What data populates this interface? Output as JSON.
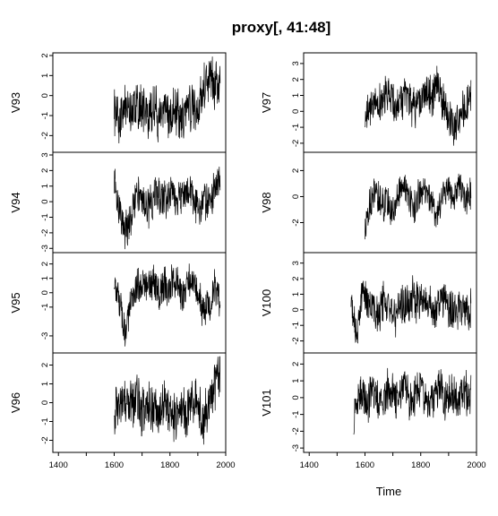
{
  "chart_data": {
    "type": "line",
    "title": "proxy[, 41:48]",
    "xlabel": "Time",
    "xlim": [
      1380,
      2000
    ],
    "xticks": [
      "1400",
      "1600",
      "1800",
      "2000"
    ],
    "grid": false,
    "columns": [
      {
        "panels": [
          {
            "name": "V93",
            "start": 1600,
            "end": 1980,
            "ylim": [
              -2.7,
              2.0
            ],
            "yticks": [
              "-2",
              "-1",
              "0",
              "1",
              "2"
            ],
            "x": [
              1600,
              1620,
              1640,
              1660,
              1680,
              1700,
              1720,
              1740,
              1760,
              1780,
              1800,
              1820,
              1840,
              1860,
              1880,
              1900,
              1920,
              1940,
              1960,
              1980
            ],
            "y": [
              -0.8,
              -1.1,
              -0.5,
              -0.9,
              -0.4,
              -0.7,
              -1.0,
              -0.6,
              -1.2,
              -0.8,
              -1.0,
              -0.7,
              -1.3,
              -0.9,
              -0.5,
              -0.8,
              0.2,
              1.0,
              0.7,
              0.3
            ]
          },
          {
            "name": "V94",
            "start": 1600,
            "end": 1980,
            "ylim": [
              -3.1,
              3.0
            ],
            "yticks": [
              "-3",
              "-2",
              "-1",
              "0",
              "1",
              "2",
              "3"
            ],
            "x": [
              1600,
              1620,
              1640,
              1660,
              1680,
              1700,
              1720,
              1740,
              1760,
              1780,
              1800,
              1820,
              1840,
              1860,
              1880,
              1900,
              1920,
              1940,
              1960,
              1980
            ],
            "y": [
              1.2,
              -0.6,
              -2.0,
              -0.8,
              0.6,
              0.3,
              -0.4,
              0.2,
              0.5,
              -0.1,
              0.7,
              0.3,
              0.1,
              1.0,
              0.4,
              -0.6,
              0.3,
              -0.2,
              0.8,
              1.4
            ]
          },
          {
            "name": "V95",
            "start": 1600,
            "end": 1980,
            "ylim": [
              -4.0,
              2.6
            ],
            "yticks": [
              "-3",
              "-1",
              "0",
              "1",
              "2"
            ],
            "x": [
              1600,
              1620,
              1640,
              1660,
              1680,
              1700,
              1720,
              1740,
              1760,
              1780,
              1800,
              1820,
              1840,
              1860,
              1880,
              1900,
              1920,
              1940,
              1960,
              1980
            ],
            "y": [
              0.5,
              -0.8,
              -2.6,
              -1.0,
              0.4,
              1.0,
              0.2,
              0.7,
              -0.3,
              0.6,
              0.4,
              0.9,
              -0.2,
              0.5,
              1.0,
              0.2,
              -1.5,
              -0.7,
              0.3,
              -0.6
            ]
          },
          {
            "name": "V96",
            "start": 1600,
            "end": 1980,
            "ylim": [
              -2.5,
              2.5
            ],
            "yticks": [
              "-2",
              "-1",
              "0",
              "1",
              "2"
            ],
            "x": [
              1600,
              1620,
              1640,
              1660,
              1680,
              1700,
              1720,
              1740,
              1760,
              1780,
              1800,
              1820,
              1840,
              1860,
              1880,
              1900,
              1920,
              1940,
              1960,
              1980
            ],
            "y": [
              -0.3,
              0.3,
              0.0,
              -0.2,
              0.4,
              -0.5,
              0.1,
              -0.3,
              -0.6,
              0.2,
              -0.4,
              -0.9,
              -0.3,
              -0.7,
              0.3,
              -0.2,
              -1.0,
              0.2,
              0.8,
              1.8
            ]
          }
        ]
      },
      {
        "panels": [
          {
            "name": "V97",
            "start": 1600,
            "end": 1980,
            "ylim": [
              -2.4,
              3.5
            ],
            "yticks": [
              "-2",
              "-1",
              "0",
              "1",
              "2",
              "3"
            ],
            "x": [
              1600,
              1620,
              1640,
              1660,
              1680,
              1700,
              1720,
              1740,
              1760,
              1780,
              1800,
              1820,
              1840,
              1860,
              1880,
              1900,
              1920,
              1940,
              1960,
              1980
            ],
            "y": [
              -0.5,
              0.6,
              1.0,
              0.4,
              1.4,
              0.8,
              0.3,
              1.0,
              0.6,
              0.2,
              0.9,
              1.4,
              0.8,
              1.7,
              0.6,
              -0.4,
              -1.0,
              -0.3,
              0.2,
              0.6
            ]
          },
          {
            "name": "V98",
            "start": 1600,
            "end": 1980,
            "ylim": [
              -4.1,
              3.2
            ],
            "yticks": [
              "-2",
              "0",
              "2"
            ],
            "x": [
              1600,
              1620,
              1640,
              1660,
              1680,
              1700,
              1720,
              1740,
              1760,
              1780,
              1800,
              1820,
              1840,
              1860,
              1880,
              1900,
              1920,
              1940,
              1960,
              1980
            ],
            "y": [
              -2.5,
              -0.4,
              0.5,
              -0.8,
              -0.2,
              -1.5,
              0.3,
              1.0,
              -0.3,
              -0.8,
              0.4,
              0.6,
              -0.5,
              -1.6,
              0.2,
              0.6,
              0.0,
              0.9,
              -0.2,
              0.3
            ]
          },
          {
            "name": "V100",
            "start": 1550,
            "end": 1980,
            "ylim": [
              -2.6,
              3.5
            ],
            "yticks": [
              "-2",
              "-1",
              "0",
              "1",
              "2",
              "3"
            ],
            "x": [
              1550,
              1570,
              1590,
              1610,
              1630,
              1650,
              1670,
              1690,
              1710,
              1730,
              1750,
              1770,
              1790,
              1810,
              1830,
              1850,
              1870,
              1890,
              1910,
              1930,
              1950,
              1970,
              1980
            ],
            "y": [
              0.3,
              -1.5,
              1.0,
              0.3,
              0.5,
              -0.2,
              0.8,
              0.0,
              -0.4,
              0.3,
              0.2,
              0.8,
              0.4,
              0.9,
              0.6,
              0.1,
              0.7,
              0.3,
              -0.1,
              0.0,
              0.2,
              -0.2,
              0.1
            ]
          },
          {
            "name": "V101",
            "start": 1560,
            "end": 1980,
            "ylim": [
              -3.1,
              2.5
            ],
            "yticks": [
              "-3",
              "-2",
              "-1",
              "0",
              "1",
              "2"
            ],
            "x": [
              1560,
              1570,
              1590,
              1610,
              1630,
              1650,
              1670,
              1690,
              1710,
              1730,
              1750,
              1770,
              1790,
              1810,
              1830,
              1850,
              1870,
              1890,
              1910,
              1930,
              1950,
              1970,
              1980
            ],
            "y": [
              -1.8,
              -0.3,
              0.4,
              -0.2,
              0.2,
              -0.3,
              0.3,
              0.5,
              -0.1,
              0.1,
              0.4,
              -0.2,
              0.6,
              0.3,
              -0.4,
              0.2,
              0.5,
              -0.1,
              0.3,
              -0.2,
              0.0,
              0.3,
              0.1
            ]
          }
        ]
      }
    ]
  }
}
